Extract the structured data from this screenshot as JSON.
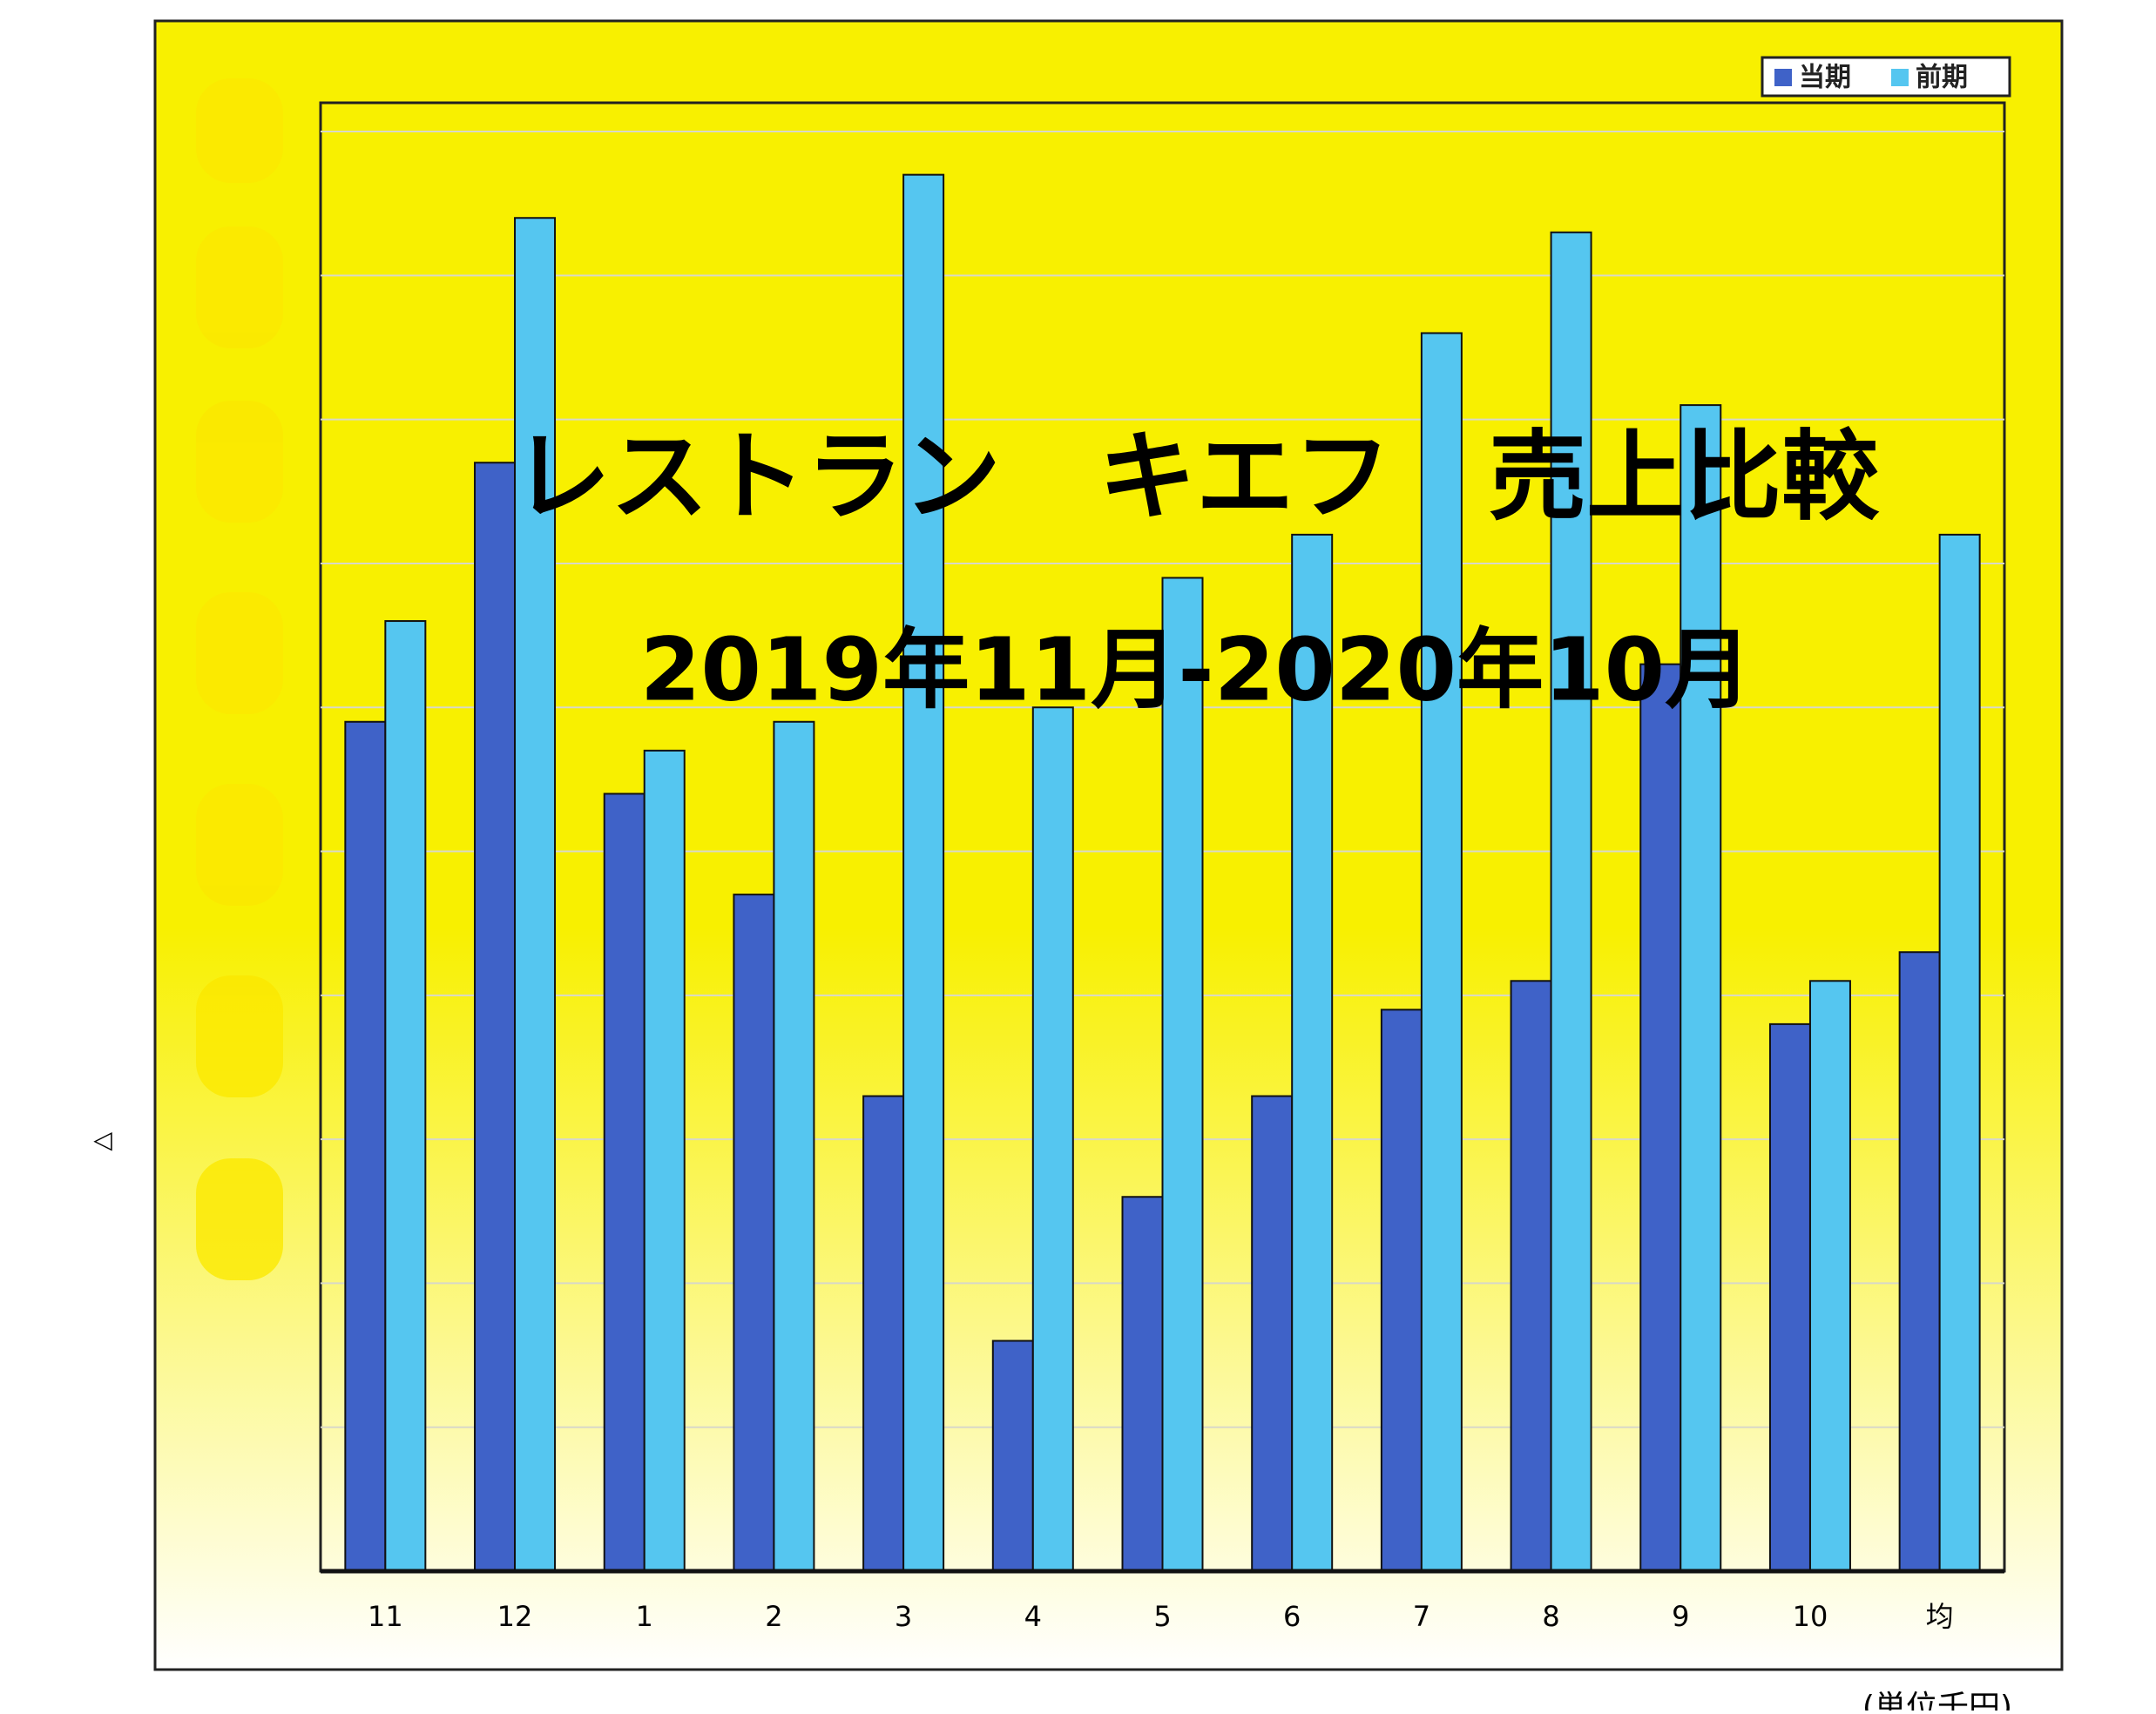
{
  "chart_data": {
    "type": "bar",
    "title": "レストラン　キエフ　売上比較",
    "subtitle": "2019年11月-2020年10月",
    "note": "(単位千円)",
    "categories": [
      "11",
      "12",
      "1",
      "2",
      "3",
      "4",
      "5",
      "6",
      "7",
      "8",
      "9",
      "10",
      "均"
    ],
    "series": [
      {
        "name": "当期",
        "color": "#3f62c8",
        "values": [
          5.9,
          7.7,
          5.4,
          4.7,
          3.3,
          1.6,
          2.6,
          3.3,
          3.9,
          4.1,
          6.3,
          3.8,
          4.3
        ]
      },
      {
        "name": "前期",
        "color": "#55c6f0",
        "values": [
          6.6,
          9.4,
          5.7,
          5.9,
          9.7,
          6.0,
          6.9,
          7.2,
          8.6,
          9.3,
          8.1,
          4.1,
          7.2
        ]
      }
    ],
    "ylim": [
      0,
      10.2
    ],
    "yticks": [
      1,
      2,
      3,
      4,
      5,
      6,
      7,
      8,
      9,
      10
    ],
    "grid": true,
    "legend": "top-right"
  }
}
